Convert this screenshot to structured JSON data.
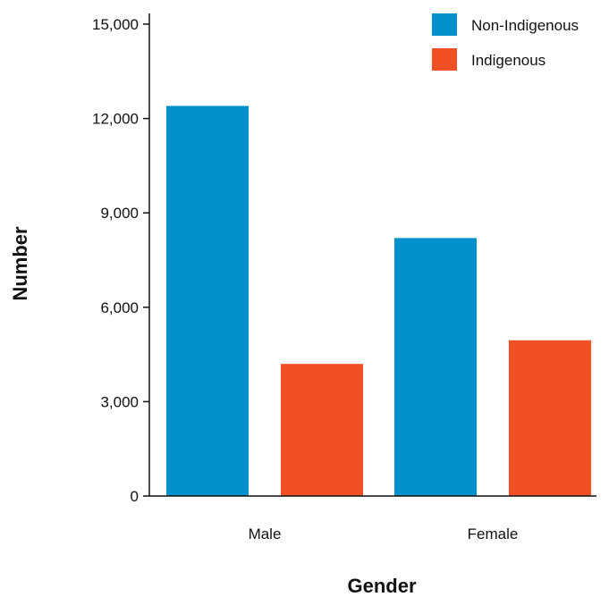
{
  "chart_data": {
    "type": "bar",
    "title": "",
    "xlabel": "Gender",
    "ylabel": "Number",
    "categories": [
      "Male",
      "Female"
    ],
    "series": [
      {
        "name": "Non-Indigenous",
        "values": [
          12400,
          8200
        ],
        "color": "#0090CC"
      },
      {
        "name": "Indigenous",
        "values": [
          4200,
          4950
        ],
        "color": "#F05024"
      }
    ],
    "ylim": [
      0,
      15000
    ],
    "yticks": [
      0,
      3000,
      6000,
      9000,
      12000,
      15000
    ],
    "ytick_labels": [
      "0",
      "3,000",
      "6,000",
      "9,000",
      "12,000",
      "15,000"
    ],
    "grid": false,
    "legend_position": "top-right"
  }
}
